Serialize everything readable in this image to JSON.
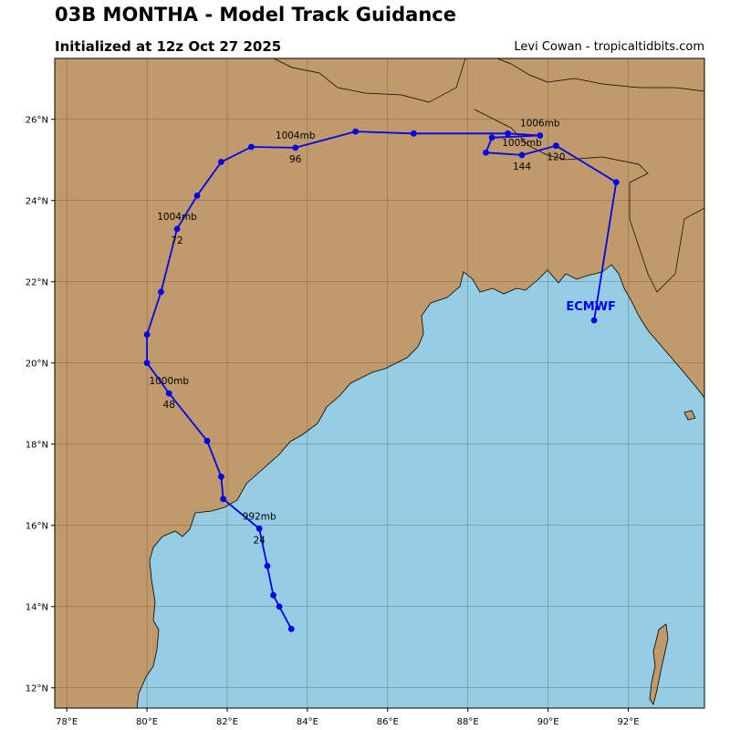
{
  "header": {
    "title": "03B MONTHA - Model Track Guidance",
    "subtitle": "Initialized at 12z Oct 27 2025",
    "credit": "Levi Cowan - tropicaltidbits.com"
  },
  "colors": {
    "land": "#c19a6b",
    "ocean": "#95cde4",
    "track": "#0000ee",
    "grid": "#5a4530"
  },
  "chart_data": {
    "type": "map-track",
    "lon_range": [
      77.7,
      93.9
    ],
    "lat_range": [
      11.5,
      27.5
    ],
    "lon_ticks": [
      {
        "value": 78,
        "label": "78°E"
      },
      {
        "value": 80,
        "label": "80°E"
      },
      {
        "value": 82,
        "label": "82°E"
      },
      {
        "value": 84,
        "label": "84°E"
      },
      {
        "value": 86,
        "label": "86°E"
      },
      {
        "value": 88,
        "label": "88°E"
      },
      {
        "value": 90,
        "label": "90°E"
      },
      {
        "value": 92,
        "label": "92°E"
      }
    ],
    "lat_ticks": [
      {
        "value": 12,
        "label": "12°N"
      },
      {
        "value": 14,
        "label": "14°N"
      },
      {
        "value": 16,
        "label": "16°N"
      },
      {
        "value": 18,
        "label": "18°N"
      },
      {
        "value": 20,
        "label": "20°N"
      },
      {
        "value": 22,
        "label": "22°N"
      },
      {
        "value": 24,
        "label": "24°N"
      },
      {
        "value": 26,
        "label": "26°N"
      }
    ],
    "grid": true,
    "model": "ECMWF",
    "model_label_position": {
      "lon": 90.45,
      "lat": 21.3
    },
    "track": [
      {
        "lon": 83.6,
        "lat": 13.45
      },
      {
        "lon": 83.3,
        "lat": 14.0
      },
      {
        "lon": 83.15,
        "lat": 14.28
      },
      {
        "lon": 83.0,
        "lat": 15.0
      },
      {
        "lon": 82.8,
        "lat": 15.92
      },
      {
        "lon": 81.9,
        "lat": 16.65
      },
      {
        "lon": 81.85,
        "lat": 17.2
      },
      {
        "lon": 81.5,
        "lat": 18.08
      },
      {
        "lon": 80.55,
        "lat": 19.25
      },
      {
        "lon": 80.0,
        "lat": 20.0
      },
      {
        "lon": 80.0,
        "lat": 20.7
      },
      {
        "lon": 80.35,
        "lat": 21.75
      },
      {
        "lon": 80.75,
        "lat": 23.3
      },
      {
        "lon": 81.25,
        "lat": 24.12
      },
      {
        "lon": 81.85,
        "lat": 24.95
      },
      {
        "lon": 82.6,
        "lat": 25.32
      },
      {
        "lon": 83.7,
        "lat": 25.3
      },
      {
        "lon": 85.2,
        "lat": 25.7
      },
      {
        "lon": 86.65,
        "lat": 25.65
      },
      {
        "lon": 89.0,
        "lat": 25.65
      },
      {
        "lon": 89.8,
        "lat": 25.6
      },
      {
        "lon": 88.6,
        "lat": 25.55
      },
      {
        "lon": 88.45,
        "lat": 25.18
      },
      {
        "lon": 89.35,
        "lat": 25.12
      },
      {
        "lon": 90.2,
        "lat": 25.35
      },
      {
        "lon": 91.7,
        "lat": 24.45
      },
      {
        "lon": 91.15,
        "lat": 21.05
      }
    ],
    "annotations": [
      {
        "pressure": "992mb",
        "hour": "24",
        "lon": 82.8,
        "lat": 15.92
      },
      {
        "pressure": "1000mb",
        "hour": "48",
        "lon": 80.55,
        "lat": 19.25
      },
      {
        "pressure": "1004mb",
        "hour": "72",
        "lon": 80.75,
        "lat": 23.3
      },
      {
        "pressure": "1004mb",
        "hour": "96",
        "lon": 83.7,
        "lat": 25.3
      },
      {
        "pressure": "1006mb",
        "hour": "",
        "lon": 89.8,
        "lat": 25.6
      },
      {
        "pressure": "1005mb",
        "hour": "144",
        "lon": 89.35,
        "lat": 25.12
      },
      {
        "pressure": "",
        "hour": "120",
        "lon": 90.2,
        "lat": 25.35
      }
    ]
  }
}
